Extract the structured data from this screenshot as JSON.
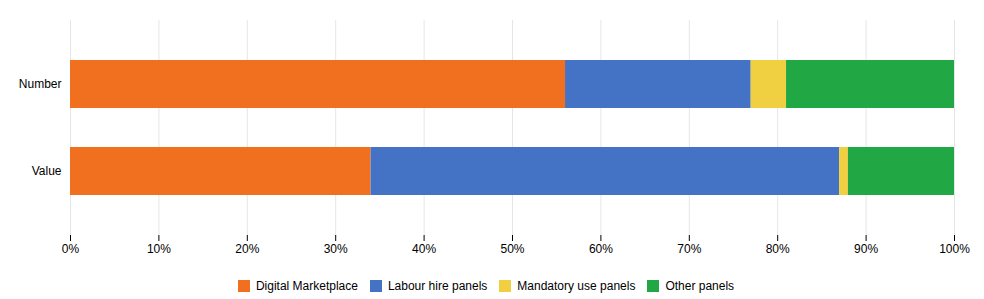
{
  "chart_data": {
    "type": "bar",
    "orientation": "horizontal",
    "stacked": true,
    "categories": [
      "Value",
      "Number"
    ],
    "series": [
      {
        "name": "Digital Marketplace",
        "color": "#F07020",
        "values": [
          34,
          56
        ]
      },
      {
        "name": "Labour hire panels",
        "color": "#4472C4",
        "values": [
          53,
          21
        ]
      },
      {
        "name": "Mandatory use panels",
        "color": "#F0D040",
        "values": [
          1,
          4
        ]
      },
      {
        "name": "Other panels",
        "color": "#21A844",
        "values": [
          12,
          19
        ]
      }
    ],
    "xlim": [
      0,
      100
    ],
    "xticks": [
      {
        "value": 0,
        "label": "0%"
      },
      {
        "value": 10,
        "label": "10%"
      },
      {
        "value": 20,
        "label": "20%"
      },
      {
        "value": 30,
        "label": "30%"
      },
      {
        "value": 40,
        "label": "40%"
      },
      {
        "value": 50,
        "label": "50%"
      },
      {
        "value": 60,
        "label": "60%"
      },
      {
        "value": 70,
        "label": "70%"
      },
      {
        "value": 80,
        "label": "80%"
      },
      {
        "value": 90,
        "label": "90%"
      },
      {
        "value": 100,
        "label": "100%"
      }
    ],
    "grid": true,
    "legend": "bottom"
  }
}
